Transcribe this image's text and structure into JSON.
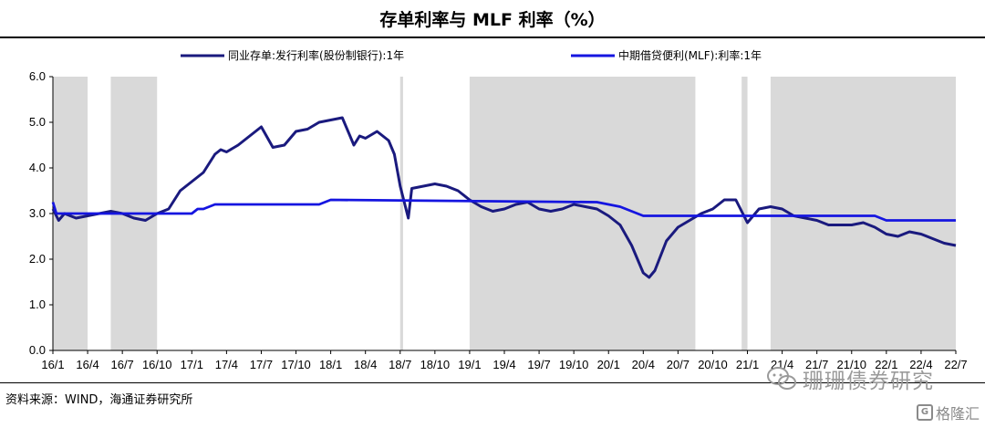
{
  "chart_data": {
    "type": "line",
    "title": "存单利率与 MLF 利率（%）",
    "xlabel": "",
    "ylabel": "",
    "ylim": [
      0,
      6
    ],
    "yticks": [
      "0.0",
      "1.0",
      "2.0",
      "3.0",
      "4.0",
      "5.0",
      "6.0"
    ],
    "xlim": [
      "2016-01",
      "2022-07"
    ],
    "xticks": [
      "16/1",
      "16/4",
      "16/7",
      "16/10",
      "17/1",
      "17/4",
      "17/7",
      "17/10",
      "18/1",
      "18/4",
      "18/7",
      "18/10",
      "19/1",
      "19/4",
      "19/7",
      "19/10",
      "20/1",
      "20/4",
      "20/7",
      "20/10",
      "21/1",
      "21/4",
      "21/7",
      "21/10",
      "22/1",
      "22/4",
      "22/7"
    ],
    "grid": false,
    "legend_position": "top",
    "shaded_periods": [
      [
        "2016-01",
        "2016-04"
      ],
      [
        "2016-06",
        "2016-10"
      ],
      [
        "2018-07",
        "2018-07.25"
      ],
      [
        "2019-01",
        "2020-08.5"
      ],
      [
        "2020-12.5",
        "2021-01"
      ],
      [
        "2021-03",
        "2022-07"
      ]
    ],
    "series": [
      {
        "name": "同业存单:发行利率(股份制银行):1年",
        "color": "#1a1a7e",
        "x": [
          "2016-01",
          "2016-01.5",
          "2016-02",
          "2016-02.5",
          "2016-03",
          "2016-04",
          "2016-05",
          "2016-06",
          "2016-07",
          "2016-08",
          "2016-09",
          "2016-10",
          "2016-11",
          "2016-12",
          "2017-01",
          "2017-02",
          "2017-03",
          "2017-03.5",
          "2017-04",
          "2017-05",
          "2017-06",
          "2017-07",
          "2017-08",
          "2017-09",
          "2017-10",
          "2017-11",
          "2017-12",
          "2018-01",
          "2018-02",
          "2018-03",
          "2018-03.5",
          "2018-04",
          "2018-05",
          "2018-06",
          "2018-06.5",
          "2018-07",
          "2018-07.3",
          "2018-07.7",
          "2018-08",
          "2018-09",
          "2018-10",
          "2018-11",
          "2018-12",
          "2019-01",
          "2019-02",
          "2019-03",
          "2019-04",
          "2019-05",
          "2019-06",
          "2019-07",
          "2019-08",
          "2019-09",
          "2019-10",
          "2019-11",
          "2019-12",
          "2020-01",
          "2020-02",
          "2020-03",
          "2020-04",
          "2020-04.5",
          "2020-05",
          "2020-06",
          "2020-07",
          "2020-08",
          "2020-09",
          "2020-10",
          "2020-11",
          "2020-12",
          "2021-01",
          "2021-02",
          "2021-03",
          "2021-04",
          "2021-05",
          "2021-06",
          "2021-07",
          "2021-08",
          "2021-09",
          "2021-10",
          "2021-11",
          "2021-12",
          "2022-01",
          "2022-02",
          "2022-03",
          "2022-04",
          "2022-05",
          "2022-06",
          "2022-07"
        ],
        "values": [
          3.1,
          2.85,
          3.0,
          2.95,
          2.9,
          2.95,
          3.0,
          3.05,
          3.0,
          2.9,
          2.85,
          3.0,
          3.1,
          3.5,
          3.7,
          3.9,
          4.3,
          4.4,
          4.35,
          4.5,
          4.7,
          4.9,
          4.45,
          4.5,
          4.8,
          4.85,
          5.0,
          5.05,
          5.1,
          4.5,
          4.7,
          4.65,
          4.8,
          4.6,
          4.3,
          3.6,
          3.3,
          2.9,
          3.55,
          3.6,
          3.65,
          3.6,
          3.5,
          3.3,
          3.15,
          3.05,
          3.1,
          3.2,
          3.25,
          3.1,
          3.05,
          3.1,
          3.2,
          3.15,
          3.1,
          2.95,
          2.75,
          2.3,
          1.7,
          1.6,
          1.75,
          2.4,
          2.7,
          2.85,
          3.0,
          3.1,
          3.3,
          3.3,
          2.8,
          3.1,
          3.15,
          3.1,
          2.95,
          2.9,
          2.85,
          2.75,
          2.75,
          2.75,
          2.8,
          2.7,
          2.55,
          2.5,
          2.6,
          2.55,
          2.45,
          2.35,
          2.3
        ]
      },
      {
        "name": "中期借贷便利(MLF):利率:1年",
        "color": "#1515e0",
        "x": [
          "2016-01",
          "2016-01.3",
          "2016-02",
          "2017-01",
          "2017-01.5",
          "2017-02",
          "2017-03",
          "2017-12",
          "2018-01",
          "2019-12",
          "2020-02",
          "2020-03",
          "2020-04",
          "2021-12",
          "2022-01",
          "2022-07"
        ],
        "values": [
          3.25,
          3.0,
          3.0,
          3.0,
          3.1,
          3.1,
          3.2,
          3.2,
          3.3,
          3.25,
          3.15,
          3.05,
          2.95,
          2.95,
          2.85,
          2.85
        ]
      }
    ]
  },
  "source_text": "资料来源：WIND，海通证券研究所",
  "watermark_text": "珊珊债券研究",
  "brand_text": "格隆汇",
  "brand_box_text": "G"
}
